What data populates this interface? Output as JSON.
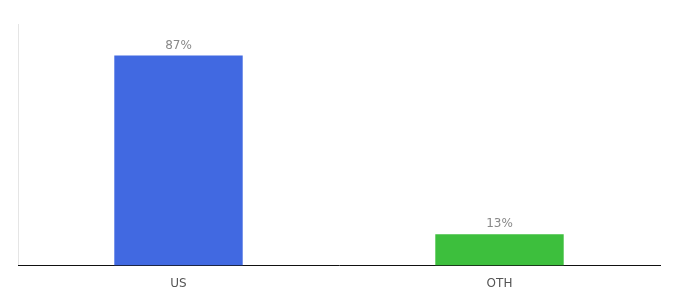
{
  "chart_data": {
    "type": "bar",
    "categories": [
      "US",
      "OTH"
    ],
    "values": [
      87,
      13
    ],
    "colors": [
      "#4169e1",
      "#3dbf3d"
    ],
    "data_labels": true,
    "value_labels": [
      "87%",
      "13%"
    ],
    "ylim": [
      0,
      100
    ],
    "tick_labels": "x",
    "grid": false
  }
}
